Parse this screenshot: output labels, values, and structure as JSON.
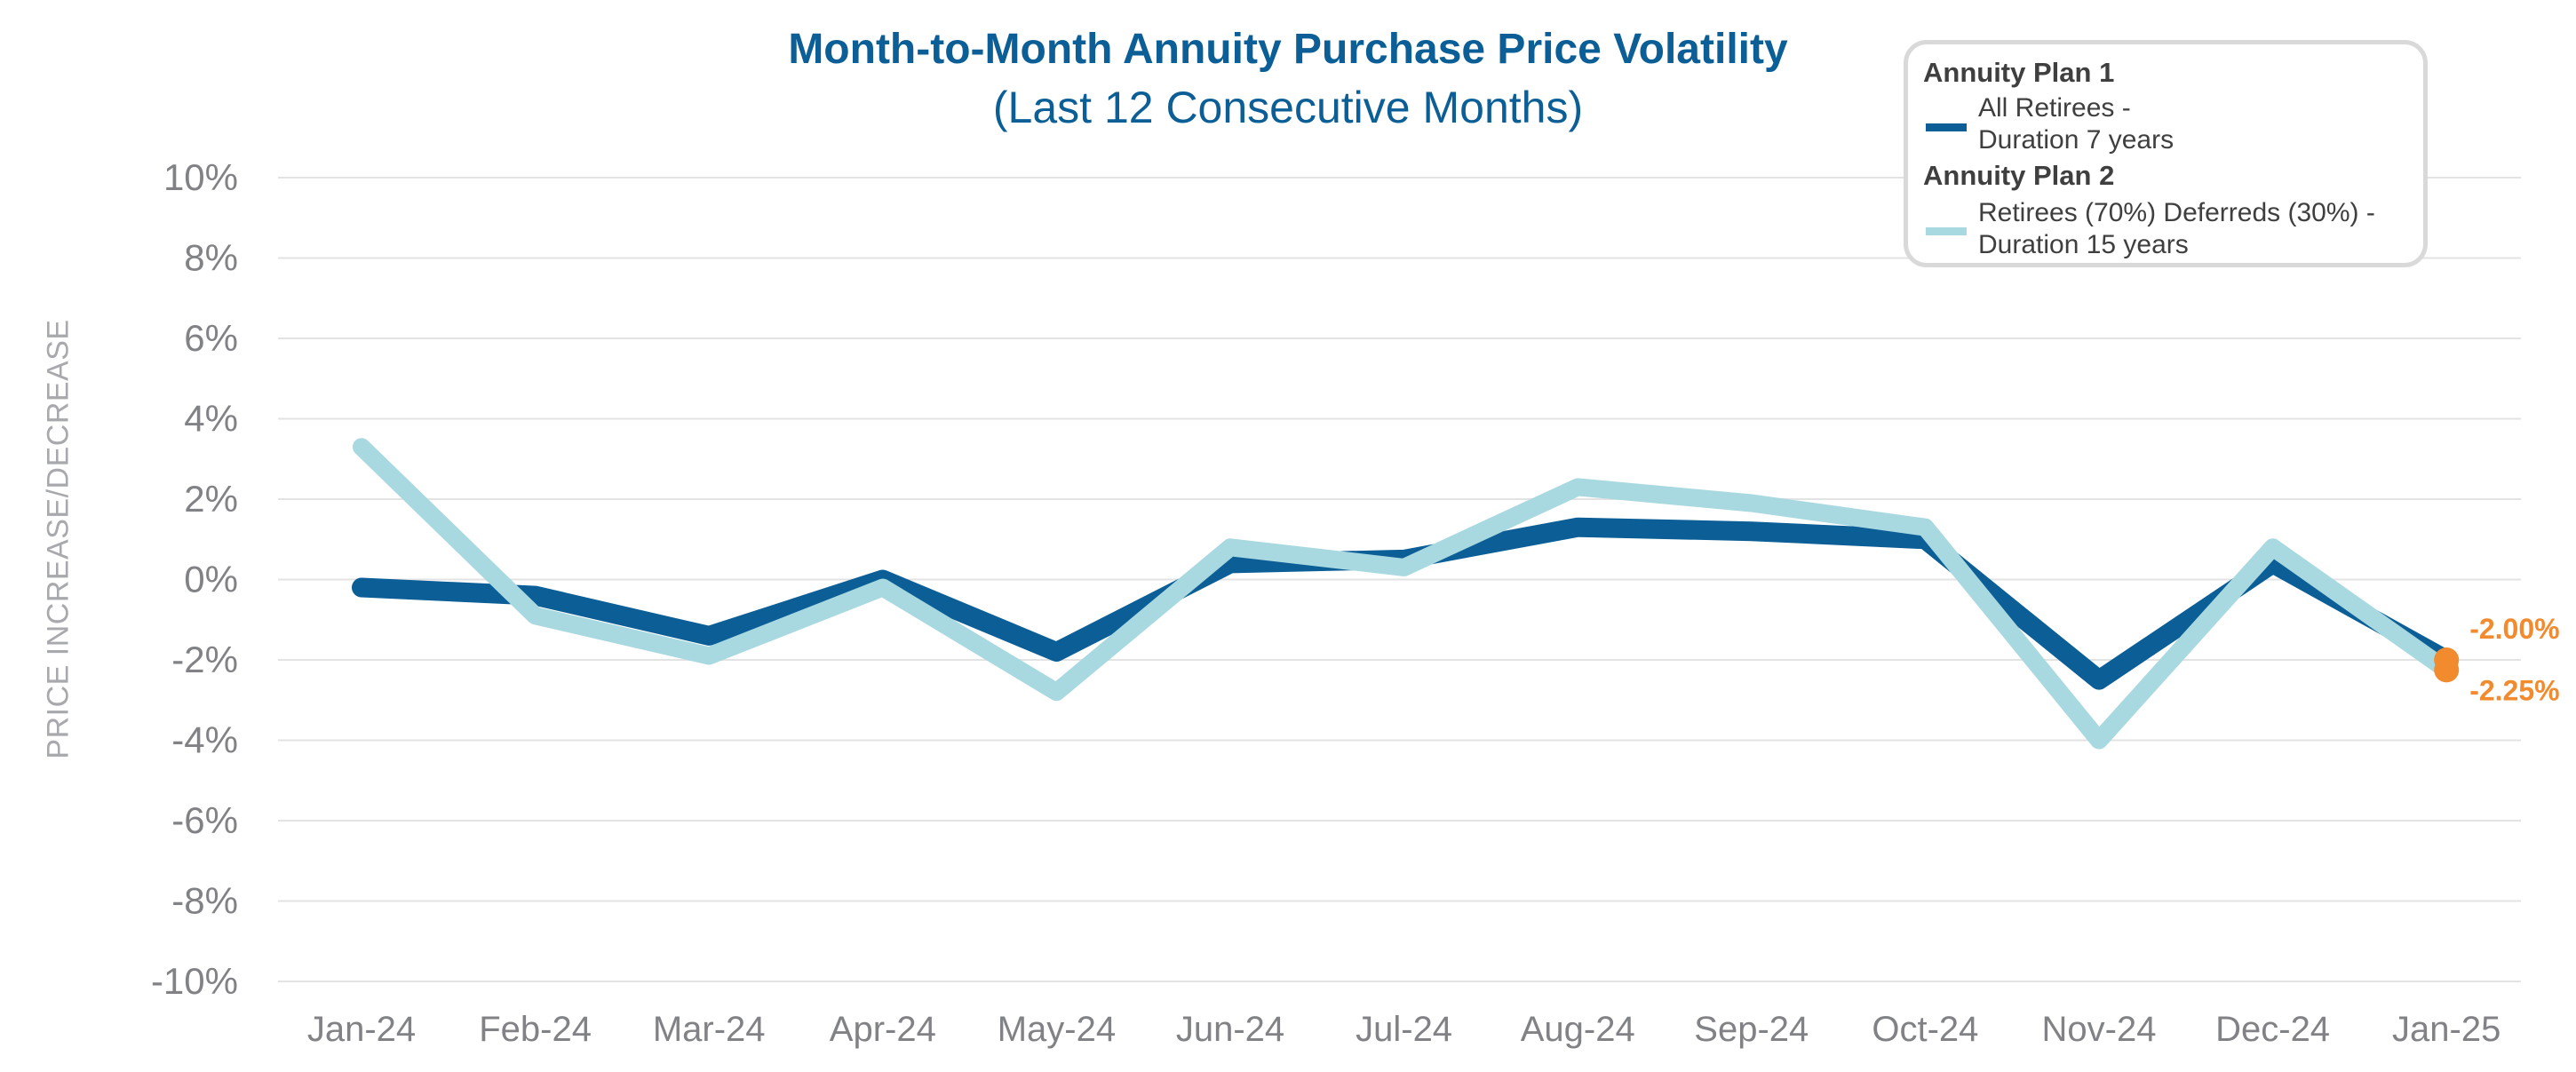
{
  "chart_data": {
    "type": "line",
    "title": "Month-to-Month Annuity Purchase Price Volatility",
    "subtitle": "(Last 12 Consecutive Months)",
    "ylabel": "PRICE INCREASE/DECREASE",
    "xlabel": "",
    "categories": [
      "Jan-24",
      "Feb-24",
      "Mar-24",
      "Apr-24",
      "May-24",
      "Jun-24",
      "Jul-24",
      "Aug-24",
      "Sep-24",
      "Oct-24",
      "Nov-24",
      "Dec-24",
      "Jan-25"
    ],
    "ylim": [
      -10,
      10
    ],
    "yticks": [
      10,
      8,
      6,
      4,
      2,
      0,
      -2,
      -4,
      -6,
      -8,
      -10
    ],
    "ytick_labels": [
      "10%",
      "8%",
      "6%",
      "4%",
      "2%",
      "0%",
      "-2%",
      "-4%",
      "-6%",
      "-8%",
      "-10%"
    ],
    "grid": true,
    "legend_position": "top-right",
    "series": [
      {
        "group": "Annuity Plan 1",
        "name": "All Retirees - Duration 7 years",
        "name_lines": [
          "All Retirees -",
          "Duration 7 years"
        ],
        "color": "#0b5e96",
        "values": [
          -0.2,
          -0.4,
          -1.4,
          0.0,
          -1.8,
          0.4,
          0.5,
          1.3,
          1.2,
          1.0,
          -2.5,
          0.4,
          -2.0
        ],
        "end_label": "-2.00%"
      },
      {
        "group": "Annuity Plan 2",
        "name": "Retirees (70%) Deferreds (30%) - Duration 15 years",
        "name_lines": [
          "Retirees (70%) Deferreds (30%) -",
          "Duration 15 years"
        ],
        "color": "#a8d8e0",
        "values": [
          3.3,
          -0.9,
          -1.9,
          -0.2,
          -2.8,
          0.8,
          0.3,
          2.3,
          1.9,
          1.3,
          -4.0,
          0.8,
          -2.25
        ],
        "end_label": "-2.25%"
      }
    ],
    "end_marker_color": "#f28a2e"
  }
}
